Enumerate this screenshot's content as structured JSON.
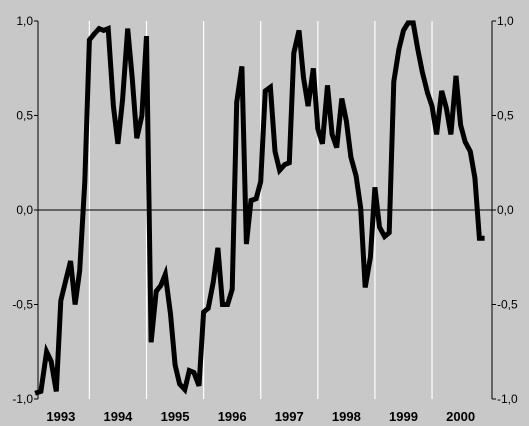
{
  "chart_data": {
    "type": "line",
    "title": "",
    "xlabel": "",
    "ylabel": "",
    "xlim": [
      1992.6,
      2000.55
    ],
    "ylim": [
      -1.0,
      1.0
    ],
    "yticks": [
      -1.0,
      -0.5,
      0.0,
      0.5,
      1.0
    ],
    "ytick_labels_left": [
      "-1,0",
      "-0,5",
      "0,0",
      "0,5",
      "1,0"
    ],
    "ytick_labels_right": [
      "-1,0",
      "-0,5",
      "0,0",
      "0,5",
      "1,0"
    ],
    "year_labels": [
      {
        "x": 1993.0,
        "label": "1993"
      },
      {
        "x": 1994.0,
        "label": "1994"
      },
      {
        "x": 1995.0,
        "label": "1995"
      },
      {
        "x": 1996.0,
        "label": "1996"
      },
      {
        "x": 1997.0,
        "label": "1997"
      },
      {
        "x": 1998.0,
        "label": "1998"
      },
      {
        "x": 1999.0,
        "label": "1999"
      },
      {
        "x": 2000.0,
        "label": "2000"
      }
    ],
    "vertical_gridlines": [
      1993.5,
      1994.5,
      1995.5,
      1996.5,
      1997.5,
      1998.5,
      1999.5
    ],
    "zero_line": 0.0,
    "grid": true,
    "legend": "none",
    "series": [
      {
        "color": "#000000",
        "x": [
          1992.55,
          1992.65,
          1992.75,
          1992.83,
          1992.92,
          1993.0,
          1993.08,
          1993.17,
          1993.25,
          1993.33,
          1993.42,
          1993.5,
          1993.58,
          1993.67,
          1993.75,
          1993.83,
          1993.92,
          1994.0,
          1994.08,
          1994.17,
          1994.25,
          1994.33,
          1994.42,
          1994.5,
          1994.58,
          1994.67,
          1994.75,
          1994.83,
          1994.92,
          1995.0,
          1995.08,
          1995.17,
          1995.25,
          1995.33,
          1995.42,
          1995.5,
          1995.58,
          1995.67,
          1995.75,
          1995.83,
          1995.92,
          1996.0,
          1996.08,
          1996.17,
          1996.25,
          1996.33,
          1996.42,
          1996.5,
          1996.58,
          1996.67,
          1996.75,
          1996.83,
          1996.92,
          1997.0,
          1997.08,
          1997.17,
          1997.25,
          1997.33,
          1997.42,
          1997.5,
          1997.58,
          1997.67,
          1997.75,
          1997.83,
          1997.92,
          1998.0,
          1998.08,
          1998.17,
          1998.25,
          1998.33,
          1998.42,
          1998.5,
          1998.58,
          1998.67,
          1998.75,
          1998.83,
          1998.92,
          1999.0,
          1999.08,
          1999.17,
          1999.25,
          1999.33,
          1999.42,
          1999.5,
          1999.58,
          1999.67,
          1999.75,
          1999.83,
          1999.92,
          2000.0,
          2000.08,
          2000.17,
          2000.25,
          2000.33,
          2000.42
        ],
        "values": [
          -0.97,
          -0.96,
          -0.75,
          -0.8,
          -0.96,
          -0.48,
          -0.38,
          -0.27,
          -0.5,
          -0.32,
          0.15,
          0.9,
          0.93,
          0.96,
          0.95,
          0.96,
          0.55,
          0.35,
          0.58,
          0.96,
          0.7,
          0.38,
          0.5,
          0.92,
          -0.7,
          -0.43,
          -0.4,
          -0.34,
          -0.55,
          -0.82,
          -0.92,
          -0.95,
          -0.85,
          -0.86,
          -0.93,
          -0.54,
          -0.52,
          -0.38,
          -0.2,
          -0.5,
          -0.5,
          -0.42,
          0.57,
          0.76,
          -0.18,
          0.05,
          0.06,
          0.15,
          0.63,
          0.65,
          0.31,
          0.21,
          0.24,
          0.25,
          0.83,
          0.95,
          0.7,
          0.55,
          0.75,
          0.43,
          0.35,
          0.66,
          0.4,
          0.33,
          0.59,
          0.47,
          0.28,
          0.18,
          0.01,
          -0.41,
          -0.25,
          0.12,
          -0.09,
          -0.14,
          -0.12,
          0.68,
          0.85,
          0.95,
          0.99,
          0.99,
          0.85,
          0.73,
          0.62,
          0.55,
          0.4,
          0.63,
          0.54,
          0.4,
          0.71,
          0.45,
          0.36,
          0.31,
          0.17,
          -0.15,
          -0.15
        ]
      }
    ]
  }
}
